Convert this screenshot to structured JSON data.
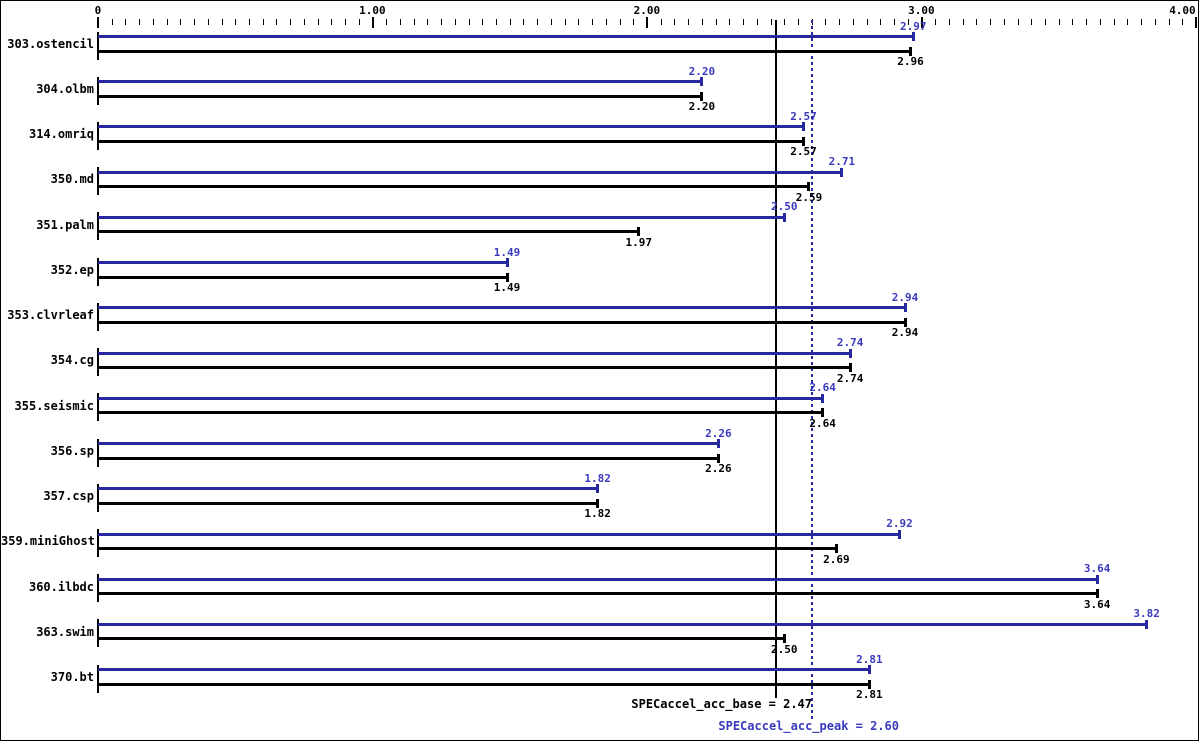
{
  "page": {
    "background": "#ffffff",
    "border_color": "#000000"
  },
  "colors": {
    "peak_bar": "#2828a0",
    "peak_text": "#3a3abe",
    "base_bar": "#000000",
    "base_text": "#000000"
  },
  "summary": {
    "base_label": "SPECaccel_acc_base = 2.47",
    "peak_label": "SPECaccel_acc_peak = 2.60"
  },
  "chart_data": {
    "type": "bar",
    "orientation": "horizontal",
    "title": "",
    "xlabel": "",
    "ylabel": "",
    "xlim": [
      0,
      4.0
    ],
    "grid": false,
    "x_major_ticks": [
      {
        "value": 0,
        "label": "0"
      },
      {
        "value": 1,
        "label": "1.00"
      },
      {
        "value": 2,
        "label": "2.00"
      },
      {
        "value": 3,
        "label": "3.00"
      },
      {
        "value": 4,
        "label": "4.00"
      }
    ],
    "minor_tick_step": 0.05,
    "value_label_decimals": 2,
    "categories": [
      "303.ostencil",
      "304.olbm",
      "314.omriq",
      "350.md",
      "351.palm",
      "352.ep",
      "353.clvrleaf",
      "354.cg",
      "355.seismic",
      "356.sp",
      "357.csp",
      "359.miniGhost",
      "360.ilbdc",
      "363.swim",
      "370.bt"
    ],
    "series": [
      {
        "name": "peak",
        "color": "#2828a0",
        "label_color": "#3a3abe",
        "values": [
          2.97,
          2.2,
          2.57,
          2.71,
          2.5,
          1.49,
          2.94,
          2.74,
          2.64,
          2.26,
          1.82,
          2.92,
          3.64,
          3.82,
          2.81
        ]
      },
      {
        "name": "base",
        "color": "#000000",
        "label_color": "#000000",
        "values": [
          2.96,
          2.2,
          2.57,
          2.59,
          1.97,
          1.49,
          2.94,
          2.74,
          2.64,
          2.26,
          1.82,
          2.69,
          3.64,
          2.5,
          2.81
        ]
      }
    ],
    "reference_lines": [
      {
        "name": "SPECaccel_acc_base",
        "value": 2.47,
        "style": "solid",
        "color": "#000000",
        "label": "SPECaccel_acc_base = 2.47"
      },
      {
        "name": "SPECaccel_acc_peak",
        "value": 2.6,
        "style": "dotted",
        "color": "#2828a0",
        "label": "SPECaccel_acc_peak = 2.60"
      }
    ]
  }
}
